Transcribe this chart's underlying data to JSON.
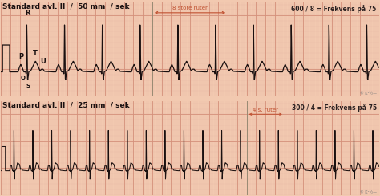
{
  "bg_color": "#f2c9b0",
  "panel_bg": "#f7ddc8",
  "grid_major_color": "#d4907a",
  "grid_minor_color": "#e8b8a8",
  "ecg_color": "#1a1010",
  "arrow_color": "#c05030",
  "marker_color": "#888870",
  "title1": "Standard avl. II  /  50 mm  / sek",
  "title2": "Standard avl. II  /  25 mm  / sek",
  "annotation1_arrow": "8 store ruter",
  "annotation1_freq": "600 / 8 = Frekvens på 75",
  "annotation2_arrow": "4 s. ruter",
  "annotation2_freq": "300 / 4 = Frekvens på 75",
  "label_P": "P",
  "label_Q": "Q",
  "label_R": "R",
  "label_S": "S",
  "label_T": "T",
  "label_U": "U",
  "copyright": "© K¹½—",
  "title_fontsize": 6.5,
  "label_fontsize": 6.0,
  "annot_fontsize": 5.0,
  "freq_fontsize": 5.5
}
